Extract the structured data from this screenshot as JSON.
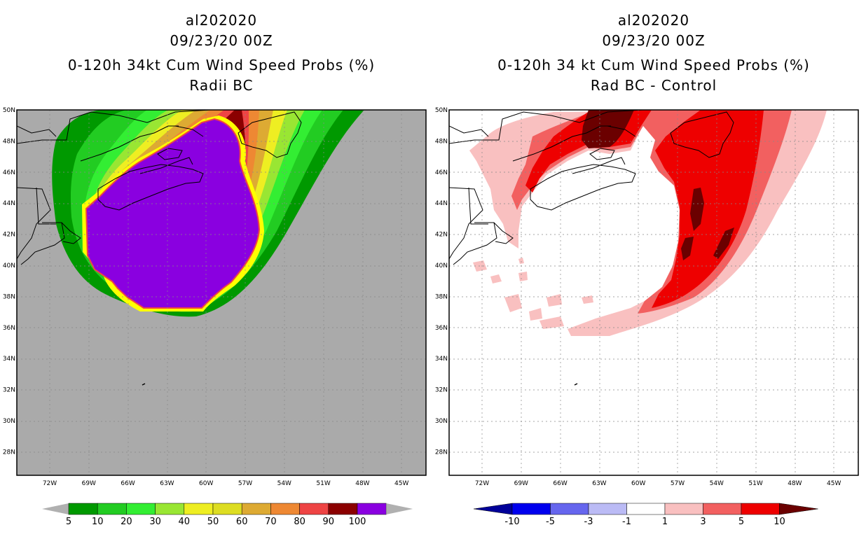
{
  "left_panel": {
    "storm_id": "al202020",
    "datetime": "09/23/20 00Z",
    "product": "0-120h 34kt Cum Wind Speed Probs (%)",
    "subtitle": "Radii BC",
    "colorbar": {
      "labels": [
        "5",
        "10",
        "20",
        "30",
        "40",
        "50",
        "60",
        "70",
        "80",
        "90",
        "100"
      ],
      "colors": [
        "#009900",
        "#22cc22",
        "#33ee33",
        "#99e633",
        "#eeee22",
        "#dddd22",
        "#ddaa33",
        "#ee8833",
        "#ee4444",
        "#8b0000",
        "#8a00e0"
      ],
      "extend_color": "#b0b0b0"
    }
  },
  "right_panel": {
    "storm_id": "al202020",
    "datetime": "09/23/20 00Z",
    "product": "0-120h 34 kt Cum Wind Speed Probs (%)",
    "subtitle": "Rad BC - Control",
    "colorbar": {
      "labels": [
        "-10",
        "-5",
        "-3",
        "-1",
        "1",
        "3",
        "5",
        "10"
      ],
      "colors": [
        "#000099",
        "#0000ee",
        "#6666ee",
        "#bbbbf5",
        "#ffffff",
        "#f9c0c0",
        "#f26060",
        "#ee0000",
        "#6b0000"
      ]
    }
  },
  "axes": {
    "lat_labels": [
      "50N",
      "48N",
      "46N",
      "44N",
      "42N",
      "40N",
      "38N",
      "36N",
      "34N",
      "32N",
      "30N",
      "28N"
    ],
    "lon_labels": [
      "72W",
      "69W",
      "66W",
      "63W",
      "60W",
      "57W",
      "54W",
      "51W",
      "48W",
      "45W"
    ]
  },
  "colors": {
    "land_sea_background": "#aaaaaa",
    "coast": "#000000",
    "grid": "#999999"
  }
}
